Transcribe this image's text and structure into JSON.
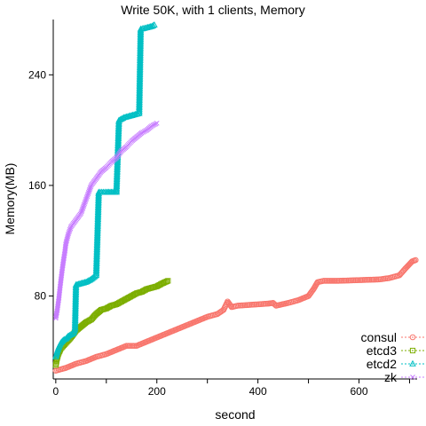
{
  "chart_data": {
    "type": "scatter",
    "title": "Write 50K, with 1 clients, Memory",
    "xlabel": "second",
    "ylabel": "Memory(MB)",
    "xlim": [
      -5,
      715
    ],
    "ylim": [
      20,
      280
    ],
    "xticks": [
      0,
      100,
      200,
      300,
      400,
      500,
      600,
      700
    ],
    "xtick_labels": [
      "0",
      "",
      "200",
      "",
      "400",
      "",
      "600",
      ""
    ],
    "yticks": [
      80,
      160,
      240
    ],
    "ytick_labels": [
      "80",
      "160",
      "240"
    ],
    "grid": false,
    "legend_position": "bottom-right",
    "series": [
      {
        "name": "consul",
        "color": "#F8766D",
        "marker": "circle",
        "points": [
          [
            0,
            26
          ],
          [
            20,
            28
          ],
          [
            40,
            31
          ],
          [
            60,
            33
          ],
          [
            80,
            36
          ],
          [
            100,
            38
          ],
          [
            120,
            41
          ],
          [
            140,
            44
          ],
          [
            160,
            44
          ],
          [
            180,
            47
          ],
          [
            200,
            50
          ],
          [
            220,
            53
          ],
          [
            240,
            56
          ],
          [
            260,
            59
          ],
          [
            280,
            62
          ],
          [
            300,
            65
          ],
          [
            320,
            67
          ],
          [
            332,
            70
          ],
          [
            340,
            76
          ],
          [
            348,
            72
          ],
          [
            360,
            73
          ],
          [
            380,
            73.5
          ],
          [
            400,
            74
          ],
          [
            420,
            74.5
          ],
          [
            430,
            75
          ],
          [
            436,
            73
          ],
          [
            460,
            75
          ],
          [
            480,
            77
          ],
          [
            500,
            80
          ],
          [
            510,
            85
          ],
          [
            518,
            90
          ],
          [
            530,
            91
          ],
          [
            560,
            91
          ],
          [
            600,
            91.5
          ],
          [
            640,
            92
          ],
          [
            660,
            93
          ],
          [
            680,
            95
          ],
          [
            692,
            100
          ],
          [
            705,
            105
          ],
          [
            712,
            106
          ]
        ]
      },
      {
        "name": "etcd3",
        "color": "#7CAE00",
        "marker": "square",
        "points": [
          [
            0,
            30
          ],
          [
            2,
            34
          ],
          [
            5,
            38
          ],
          [
            10,
            42
          ],
          [
            20,
            46
          ],
          [
            30,
            50
          ],
          [
            40,
            55
          ],
          [
            50,
            58
          ],
          [
            60,
            61
          ],
          [
            70,
            63
          ],
          [
            80,
            67
          ],
          [
            90,
            70
          ],
          [
            100,
            71
          ],
          [
            110,
            73
          ],
          [
            120,
            74
          ],
          [
            130,
            76
          ],
          [
            140,
            78
          ],
          [
            150,
            80
          ],
          [
            160,
            82
          ],
          [
            170,
            83
          ],
          [
            180,
            85
          ],
          [
            190,
            86
          ],
          [
            200,
            87
          ],
          [
            210,
            89
          ],
          [
            222,
            91
          ]
        ]
      },
      {
        "name": "etcd2",
        "color": "#00BFC4",
        "marker": "triangle",
        "points": [
          [
            0,
            36
          ],
          [
            3,
            40
          ],
          [
            6,
            43
          ],
          [
            10,
            46
          ],
          [
            15,
            48
          ],
          [
            20,
            49
          ],
          [
            25,
            51
          ],
          [
            30,
            52
          ],
          [
            35,
            53
          ],
          [
            38,
            56
          ],
          [
            40,
            88
          ],
          [
            50,
            89
          ],
          [
            60,
            90
          ],
          [
            70,
            92
          ],
          [
            80,
            95
          ],
          [
            85,
            155
          ],
          [
            100,
            155
          ],
          [
            110,
            155
          ],
          [
            120,
            155
          ],
          [
            125,
            207
          ],
          [
            135,
            209
          ],
          [
            145,
            210
          ],
          [
            155,
            211
          ],
          [
            165,
            212
          ],
          [
            168,
            273
          ],
          [
            180,
            274
          ],
          [
            190,
            275
          ],
          [
            195,
            276
          ]
        ]
      },
      {
        "name": "zk",
        "color": "#C77CFF",
        "marker": "cross",
        "points": [
          [
            0,
            64
          ],
          [
            3,
            70
          ],
          [
            6,
            78
          ],
          [
            9,
            88
          ],
          [
            12,
            97
          ],
          [
            15,
            105
          ],
          [
            18,
            112
          ],
          [
            20,
            118
          ],
          [
            25,
            125
          ],
          [
            30,
            130
          ],
          [
            40,
            135
          ],
          [
            50,
            140
          ],
          [
            55,
            145
          ],
          [
            60,
            150
          ],
          [
            65,
            155
          ],
          [
            70,
            160
          ],
          [
            80,
            165
          ],
          [
            90,
            170
          ],
          [
            100,
            173
          ],
          [
            110,
            177
          ],
          [
            120,
            180
          ],
          [
            130,
            185
          ],
          [
            140,
            188
          ],
          [
            150,
            192
          ],
          [
            160,
            195
          ],
          [
            170,
            198
          ],
          [
            180,
            200
          ],
          [
            190,
            203
          ],
          [
            200,
            205
          ]
        ]
      }
    ]
  },
  "legend": {
    "entries": [
      "consul",
      "etcd3",
      "etcd2",
      "zk"
    ],
    "colors": [
      "#F8766D",
      "#7CAE00",
      "#00BFC4",
      "#C77CFF"
    ],
    "markers": [
      "circle",
      "square",
      "triangle",
      "cross"
    ]
  }
}
